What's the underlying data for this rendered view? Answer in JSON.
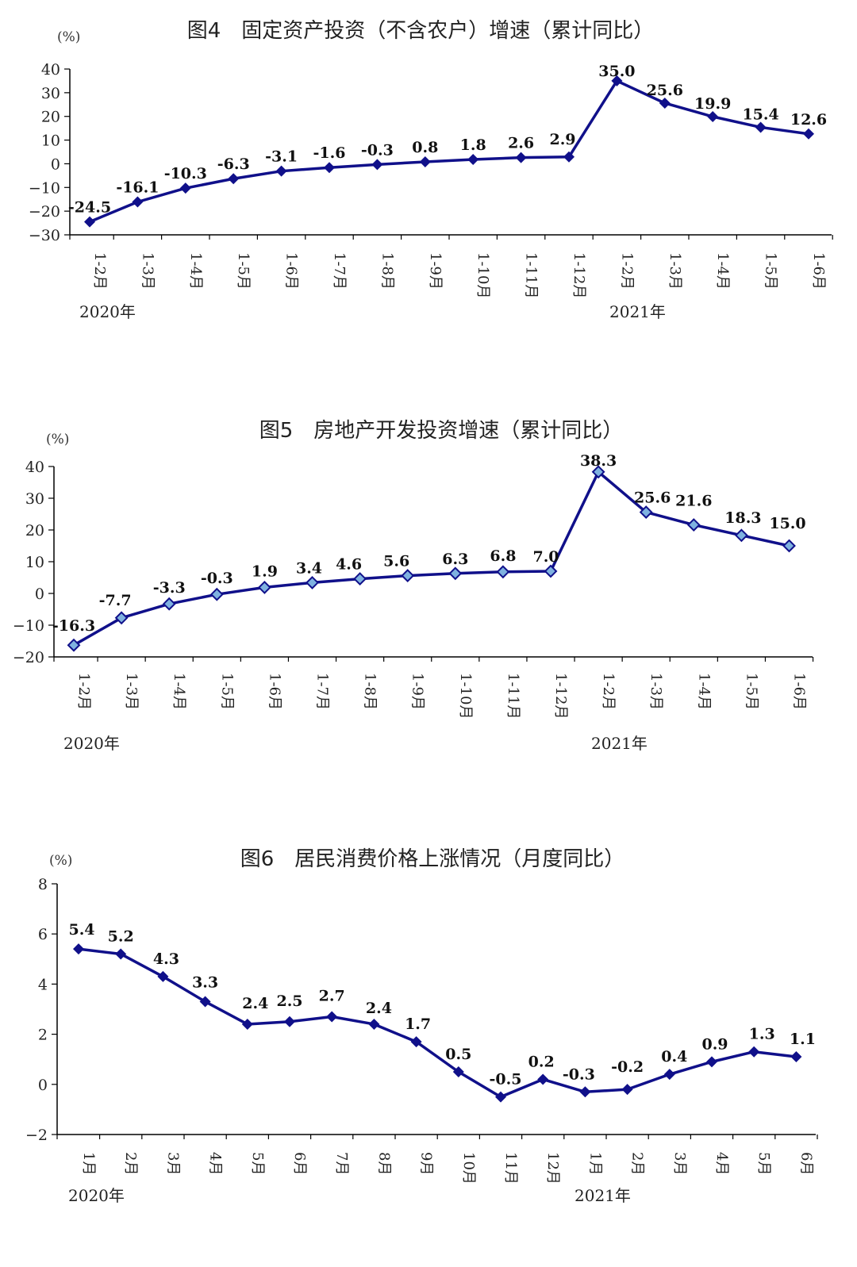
{
  "colors": {
    "line": "#10108a",
    "marker": "#10108a",
    "marker_light": "#7fb2e0"
  },
  "chart_data": [
    {
      "type": "line",
      "title": "图4　固定资产投资（不含农户）增速（累计同比）",
      "unit": "(%)",
      "ylim": [
        -30,
        40
      ],
      "yticks": [
        40,
        30,
        20,
        10,
        0,
        -10,
        -20,
        -30
      ],
      "categories": [
        "1-2月",
        "1-3月",
        "1-4月",
        "1-5月",
        "1-6月",
        "1-7月",
        "1-8月",
        "1-9月",
        "1-10月",
        "1-11月",
        "1-12月",
        "1-2月",
        "1-3月",
        "1-4月",
        "1-5月",
        "1-6月"
      ],
      "values": [
        -24.5,
        -16.1,
        -10.3,
        -6.3,
        -3.1,
        -1.6,
        -0.3,
        0.8,
        1.8,
        2.6,
        2.9,
        35.0,
        25.6,
        19.9,
        15.4,
        12.6
      ],
      "labels": [
        "-24.5",
        "-16.1",
        "-10.3",
        "-6.3",
        "-3.1",
        "-1.6",
        "-0.3",
        "0.8",
        "1.8",
        "2.6",
        "2.9",
        "35.0",
        "25.6",
        "19.9",
        "15.4",
        "12.6"
      ],
      "year_labels": [
        "2020年",
        "2021年"
      ],
      "grid": false
    },
    {
      "type": "line",
      "title": "图5　房地产开发投资增速（累计同比）",
      "unit": "(%)",
      "ylim": [
        -20,
        40
      ],
      "yticks": [
        40,
        30,
        20,
        10,
        0,
        -10,
        -20
      ],
      "categories": [
        "1-2月",
        "1-3月",
        "1-4月",
        "1-5月",
        "1-6月",
        "1-7月",
        "1-8月",
        "1-9月",
        "1-10月",
        "1-11月",
        "1-12月",
        "1-2月",
        "1-3月",
        "1-4月",
        "1-5月",
        "1-6月"
      ],
      "values": [
        -16.3,
        -7.7,
        -3.3,
        -0.3,
        1.9,
        3.4,
        4.6,
        5.6,
        6.3,
        6.8,
        7.0,
        38.3,
        25.6,
        21.6,
        18.3,
        15.0
      ],
      "labels": [
        "-16.3",
        "-7.7",
        "-3.3",
        "-0.3",
        "1.9",
        "3.4",
        "4.6",
        "5.6",
        "6.3",
        "6.8",
        "7.0",
        "38.3",
        "25.6",
        "21.6",
        "18.3",
        "15.0"
      ],
      "year_labels": [
        "2020年",
        "2021年"
      ],
      "grid": false
    },
    {
      "type": "line",
      "title": "图6　居民消费价格上涨情况（月度同比）",
      "unit": "(%)",
      "ylim": [
        -2,
        8
      ],
      "yticks": [
        8,
        6,
        4,
        2,
        0,
        -2
      ],
      "categories": [
        "1月",
        "2月",
        "3月",
        "4月",
        "5月",
        "6月",
        "7月",
        "8月",
        "9月",
        "10月",
        "11月",
        "12月",
        "1月",
        "2月",
        "3月",
        "4月",
        "5月",
        "6月"
      ],
      "values": [
        5.4,
        5.2,
        4.3,
        3.3,
        2.4,
        2.5,
        2.7,
        2.4,
        1.7,
        0.5,
        -0.5,
        0.2,
        -0.3,
        -0.2,
        0.4,
        0.9,
        1.3,
        1.1
      ],
      "labels": [
        "5.4",
        "5.2",
        "4.3",
        "3.3",
        "2.4",
        "2.5",
        "2.7",
        "2.4",
        "1.7",
        "0.5",
        "-0.5",
        "0.2",
        "-0.3",
        "-0.2",
        "0.4",
        "0.9",
        "1.3",
        "1.1"
      ],
      "year_labels": [
        "2020年",
        "2021年"
      ],
      "grid": false
    }
  ]
}
